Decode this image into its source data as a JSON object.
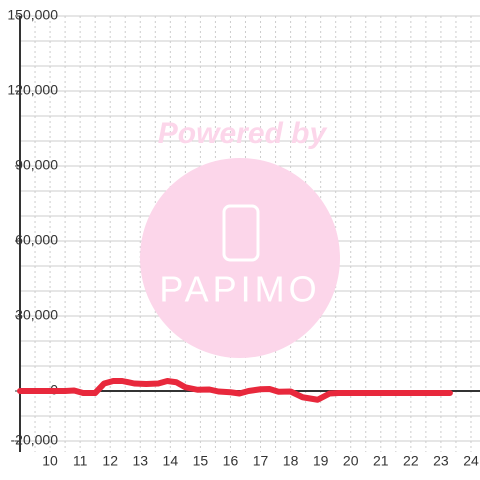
{
  "chart_data": {
    "type": "line",
    "x": [
      9,
      10.5,
      10.8,
      11.1,
      11.5,
      11.8,
      12.1,
      12.4,
      12.8,
      13.2,
      13.6,
      13.9,
      14.2,
      14.5,
      14.9,
      15.3,
      15.6,
      16,
      16.3,
      16.6,
      17,
      17.3,
      17.6,
      18,
      18.4,
      18.9,
      19.3,
      19.6,
      23.3
    ],
    "series": [
      {
        "color": "#e8283c",
        "values": [
          0,
          0,
          200,
          -800,
          -800,
          3000,
          4000,
          4000,
          3000,
          2800,
          3000,
          4000,
          3500,
          1500,
          500,
          600,
          -200,
          -500,
          -1000,
          0,
          700,
          800,
          -300,
          -200,
          -2500,
          -3500,
          -1000,
          -800,
          -800
        ]
      }
    ],
    "xlim": [
      9,
      24.3
    ],
    "xticks": [
      10,
      11,
      12,
      13,
      14,
      15,
      16,
      17,
      18,
      19,
      20,
      21,
      22,
      23,
      24
    ],
    "xminor": [
      9.5,
      10.5,
      11.5,
      12.5,
      13.5,
      14.5,
      15.5,
      16.5,
      17.5,
      18.5,
      19.5,
      20.5,
      21.5,
      22.5,
      23.5
    ],
    "ylim": [
      -20000,
      150000
    ],
    "yticks": [
      {
        "value": -20000,
        "label": "-20,000"
      },
      0,
      {
        "value": 30000,
        "label": "30,000"
      },
      {
        "value": 60000,
        "label": "60,000"
      },
      {
        "value": 90000,
        "label": "90,000"
      },
      {
        "value": 120000,
        "label": "120,000"
      },
      {
        "value": 150000,
        "label": "150,000"
      }
    ],
    "yminor": [
      -10000,
      10000,
      20000,
      40000,
      50000,
      70000,
      80000,
      100000,
      110000,
      130000,
      140000
    ],
    "grid": true,
    "watermark": {
      "text": "Powered by",
      "logo": "PAPIMO"
    }
  }
}
